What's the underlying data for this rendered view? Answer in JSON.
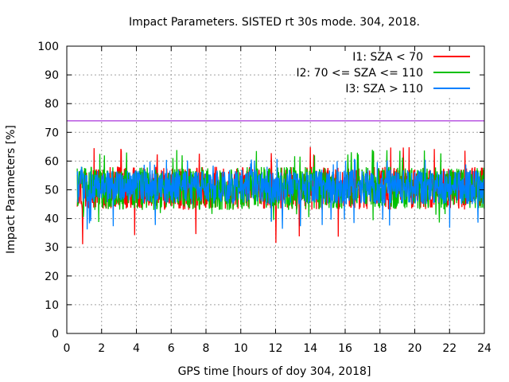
{
  "chart_data": {
    "type": "line",
    "title": "Impact Parameters. SISTED rt 30s mode. 304, 2018.",
    "xlabel": "GPS time [hours of doy 304, 2018]",
    "ylabel": "Impact Parameters [%]",
    "xlim": [
      0,
      24
    ],
    "ylim": [
      0,
      100
    ],
    "xticks": [
      "0",
      "2",
      "4",
      "6",
      "8",
      "10",
      "12",
      "14",
      "16",
      "18",
      "20",
      "22",
      "24"
    ],
    "yticks": [
      "0",
      "10",
      "20",
      "30",
      "40",
      "50",
      "60",
      "70",
      "80",
      "90",
      "100"
    ],
    "grid": true,
    "legend_position": "top-right",
    "reference_line": {
      "y": 74,
      "color": "#9400d3"
    },
    "series": [
      {
        "name": "I1: SZA < 70",
        "color": "#ff0000",
        "x_range": [
          0.6,
          24
        ],
        "center": 50,
        "typical_range": [
          43,
          58
        ],
        "min_observed": 31,
        "max_observed": 65
      },
      {
        "name": "I2: 70 <= SZA <= 110",
        "color": "#00c000",
        "x_range": [
          0.6,
          24
        ],
        "center": 50,
        "typical_range": [
          43,
          58
        ],
        "min_observed": 38,
        "max_observed": 64
      },
      {
        "name": "I3: SZA > 110",
        "color": "#0080ff",
        "x_range": [
          0.6,
          24
        ],
        "center": 51,
        "typical_range": [
          45,
          57
        ],
        "min_observed": 36,
        "max_observed": 61
      }
    ]
  }
}
